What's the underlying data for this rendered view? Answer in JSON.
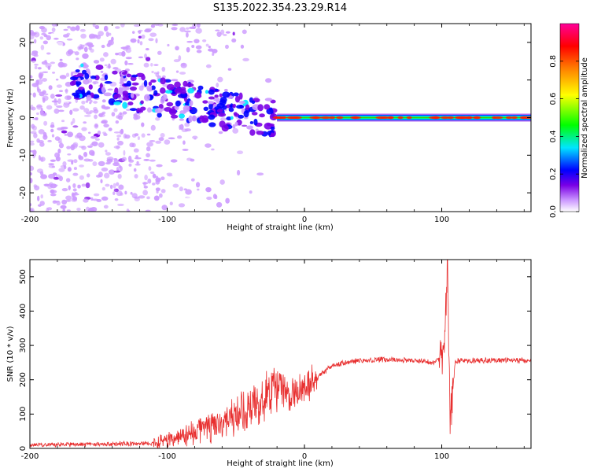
{
  "title": "S135.2022.354.23.29.R14",
  "chart_data": [
    {
      "type": "heatmap",
      "xlabel": "Height of straight line (km)",
      "ylabel": "Frequency (Hz)",
      "xlim": [
        -200,
        165
      ],
      "ylim": [
        -25,
        25
      ],
      "x_ticks": [
        -200,
        -100,
        0,
        100
      ],
      "y_ticks": [
        -20,
        -10,
        0,
        10,
        20
      ],
      "colorbar": {
        "label": "Normalized spectral amplitude",
        "range": [
          0,
          1
        ],
        "ticks": [
          "0.0",
          "0.2",
          "0.4",
          "0.6",
          "0.8"
        ],
        "colors": [
          "#ffffff",
          "#cc99ff",
          "#7a00e6",
          "#0000ff",
          "#00e5ff",
          "#00ff00",
          "#ffff00",
          "#ff8000",
          "#ff0000",
          "#ff0099"
        ]
      },
      "features": {
        "carrier_line": {
          "x_start": -20,
          "x_end": 165,
          "frequency": 0
        },
        "scatter_region": {
          "x_start": -200,
          "x_end": -20,
          "frequency_range": [
            -25,
            25
          ]
        }
      }
    },
    {
      "type": "line",
      "xlabel": "Height of straight line (km)",
      "ylabel": "SNR (10 * v/v)",
      "xlim": [
        -200,
        165
      ],
      "ylim": [
        0,
        550
      ],
      "x_ticks": [
        -200,
        -100,
        0,
        100
      ],
      "y_ticks": [
        0,
        100,
        200,
        300,
        400,
        500
      ],
      "color": "#e83030",
      "x": [
        -200,
        -150,
        -110,
        -100,
        -80,
        -60,
        -40,
        -30,
        -20,
        -15,
        -10,
        -5,
        0,
        10,
        20,
        30,
        40,
        60,
        80,
        95,
        100,
        102,
        104,
        106,
        110,
        130,
        150,
        165
      ],
      "y": [
        10,
        12,
        15,
        25,
        45,
        80,
        110,
        150,
        190,
        170,
        150,
        160,
        175,
        210,
        240,
        250,
        255,
        260,
        255,
        250,
        270,
        300,
        540,
        90,
        255,
        255,
        258,
        255
      ]
    }
  ]
}
